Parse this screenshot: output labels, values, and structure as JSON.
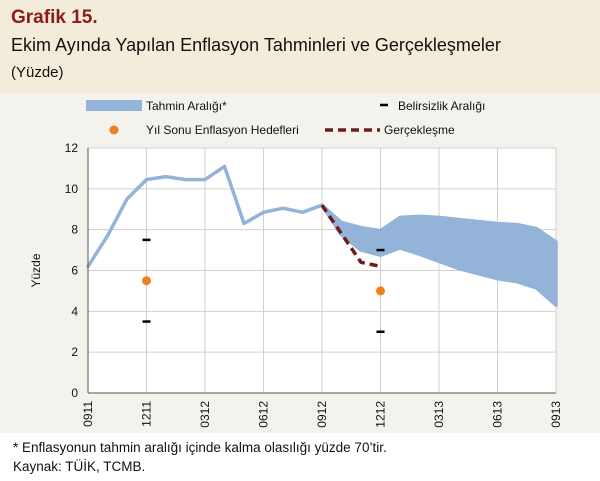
{
  "figure": {
    "label": "Grafik 15.",
    "title": "Ekim Ayında Yapılan Enflasyon Tahminleri ve Gerçekleşmeler",
    "unit": "(Yüzde)",
    "footnote": "* Enflasyonun tahmin aralığı içinde kalma olasılığı yüzde 70’tir.",
    "source": "Kaynak: TÜİK, TCMB."
  },
  "colors": {
    "header_bg": "#f3ecda",
    "title_label": "#8b1c1c",
    "forecast_band": "#93b3d9",
    "target_dot": "#f07f1e",
    "realization": "#6e1d1d",
    "uncertainty": "#000000"
  },
  "chart_data": {
    "type": "line",
    "ylabel": "Yüzde",
    "xlabel": "",
    "ylim": [
      0,
      12
    ],
    "yticks": [
      0,
      2,
      4,
      6,
      8,
      10,
      12
    ],
    "x_ticks": [
      "0911",
      "1211",
      "0312",
      "0612",
      "0912",
      "1212",
      "0313",
      "0613",
      "0913"
    ],
    "grid": true,
    "legend": [
      {
        "key": "band",
        "label": "Tahmin Aralığı*"
      },
      {
        "key": "uncertainty",
        "label": "Belirsizlik Aralığı"
      },
      {
        "key": "target",
        "label": "Yıl Sonu Enflasyon Hedefleri"
      },
      {
        "key": "realization",
        "label": "Gerçekleşme"
      }
    ],
    "series": [
      {
        "name": "Tahmin Aralığı*",
        "kind": "band",
        "x": [
          "0911",
          "1011",
          "1111",
          "1211",
          "0112",
          "0212",
          "0312",
          "0412",
          "0512",
          "0612",
          "0712",
          "0812",
          "0912",
          "1012",
          "1112",
          "1212",
          "0113",
          "0213",
          "0313",
          "0413",
          "0513",
          "0613",
          "0713",
          "0813",
          "0913"
        ],
        "upper": [
          6.2,
          7.7,
          9.5,
          10.45,
          10.6,
          10.45,
          10.45,
          11.1,
          8.3,
          8.85,
          9.05,
          8.85,
          9.2,
          8.35,
          8.1,
          7.95,
          8.6,
          8.65,
          8.6,
          8.5,
          8.4,
          8.3,
          8.25,
          8.05,
          7.4
        ],
        "lower": [
          6.2,
          7.7,
          9.5,
          10.45,
          10.6,
          10.45,
          10.45,
          11.1,
          8.3,
          8.85,
          9.05,
          8.85,
          9.2,
          7.75,
          7.0,
          6.75,
          7.1,
          6.8,
          6.45,
          6.1,
          5.85,
          5.6,
          5.45,
          5.15,
          4.3
        ]
      },
      {
        "name": "Gerçekleşme",
        "kind": "line",
        "x": [
          "0912",
          "1012",
          "1112",
          "1212"
        ],
        "values": [
          9.2,
          7.8,
          6.4,
          6.2
        ]
      },
      {
        "name": "Yıl Sonu Enflasyon Hedefleri",
        "kind": "point",
        "x": [
          "1211",
          "1212"
        ],
        "values": [
          5.5,
          5.0
        ]
      },
      {
        "name": "Belirsizlik Aralığı",
        "kind": "range_marks",
        "x": [
          "1211",
          "1212"
        ],
        "upper": [
          7.5,
          7.0
        ],
        "lower": [
          3.5,
          3.0
        ]
      }
    ]
  }
}
